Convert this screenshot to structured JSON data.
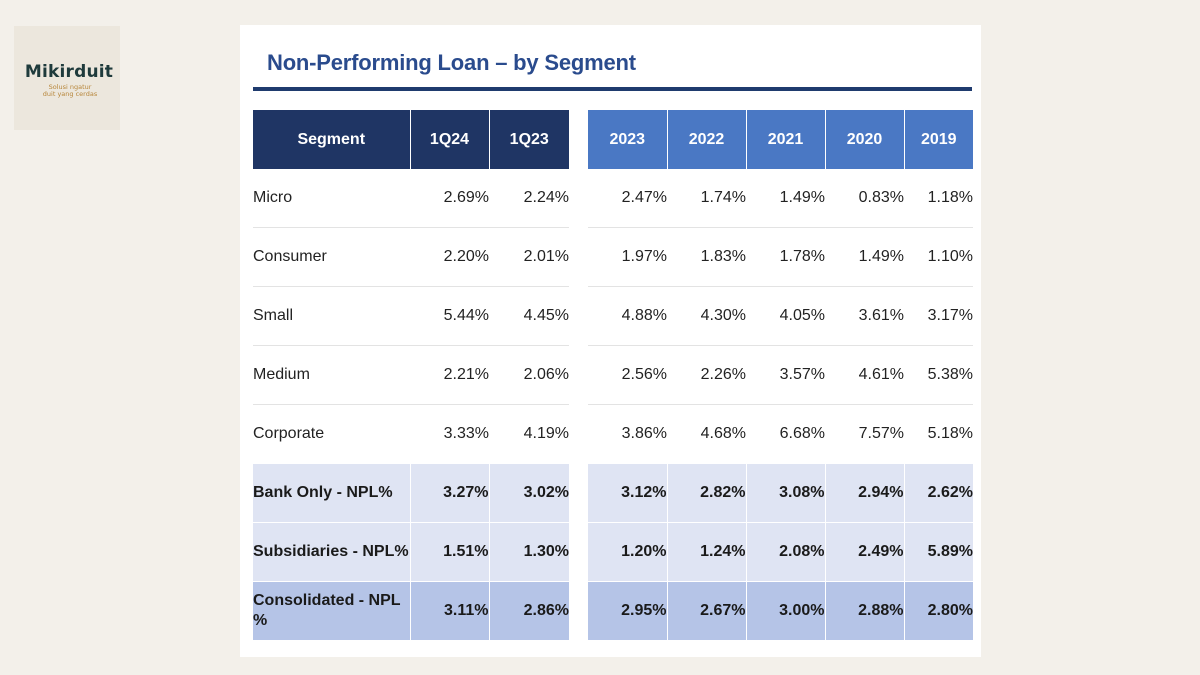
{
  "logo": {
    "name": "Mikirduit",
    "tagline_line1": "Solusi ngatur",
    "tagline_line2": "duit yang cerdas"
  },
  "title": "Non-Performing Loan – by Segment",
  "left_table": {
    "headers": [
      "Segment",
      "1Q24",
      "1Q23"
    ]
  },
  "right_table": {
    "headers": [
      "2023",
      "2022",
      "2021",
      "2020",
      "2019"
    ]
  },
  "rows": [
    {
      "segment": "Micro",
      "q": [
        "2.69%",
        "2.24%"
      ],
      "years": [
        "2.47%",
        "1.74%",
        "1.49%",
        "0.83%",
        "1.18%"
      ]
    },
    {
      "segment": "Consumer",
      "q": [
        "2.20%",
        "2.01%"
      ],
      "years": [
        "1.97%",
        "1.83%",
        "1.78%",
        "1.49%",
        "1.10%"
      ]
    },
    {
      "segment": "Small",
      "q": [
        "5.44%",
        "4.45%"
      ],
      "years": [
        "4.88%",
        "4.30%",
        "4.05%",
        "3.61%",
        "3.17%"
      ]
    },
    {
      "segment": "Medium",
      "q": [
        "2.21%",
        "2.06%"
      ],
      "years": [
        "2.56%",
        "2.26%",
        "3.57%",
        "4.61%",
        "5.38%"
      ]
    },
    {
      "segment": "Corporate",
      "q": [
        "3.33%",
        "4.19%"
      ],
      "years": [
        "3.86%",
        "4.68%",
        "6.68%",
        "7.57%",
        "5.18%"
      ]
    },
    {
      "segment": "Bank Only - NPL%",
      "q": [
        "3.27%",
        "3.02%"
      ],
      "years": [
        "3.12%",
        "2.82%",
        "3.08%",
        "2.94%",
        "2.62%"
      ]
    },
    {
      "segment": "Subsidiaries - NPL%",
      "q": [
        "1.51%",
        "1.30%"
      ],
      "years": [
        "1.20%",
        "1.24%",
        "2.08%",
        "2.49%",
        "5.89%"
      ]
    },
    {
      "segment": "Consolidated - NPL %",
      "q": [
        "3.11%",
        "2.86%"
      ],
      "years": [
        "2.95%",
        "2.67%",
        "3.00%",
        "2.88%",
        "2.80%"
      ]
    }
  ],
  "colors": {
    "left_header": "#1f3564",
    "right_header": "#4a78c4",
    "summary_light": "#dfe4f3",
    "summary_dark": "#b5c4e7",
    "title": "#2a4b8d"
  }
}
